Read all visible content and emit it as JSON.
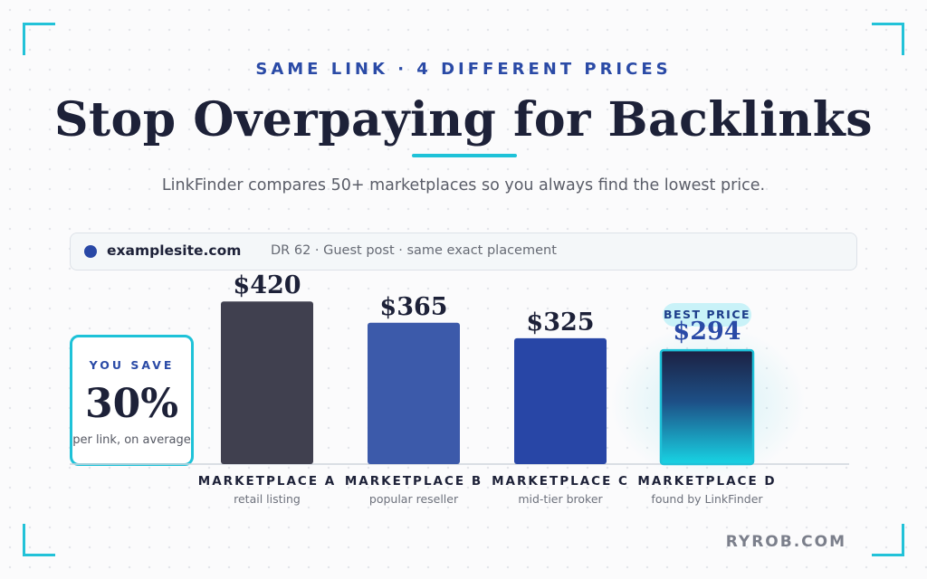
{
  "header": {
    "eyebrow": "SAME LINK · 4 DIFFERENT PRICES",
    "title": "Stop Overpaying for Backlinks",
    "subtitle": "LinkFinder compares 50+ marketplaces so you always find the lowest price."
  },
  "listing": {
    "site": "examplesite.com",
    "meta": "DR 62 · Guest post · same exact placement"
  },
  "savings": {
    "label": "YOU SAVE",
    "value": "30%",
    "note": "per link, on average"
  },
  "badge": "BEST PRICE",
  "brand": "RYROB.COM",
  "colors": {
    "accent": "#1ec2d8",
    "brand_blue": "#2a4aa6",
    "text_dark": "#1d2138"
  },
  "chart_data": {
    "type": "bar",
    "categories": [
      "MARKETPLACE A",
      "MARKETPLACE B",
      "MARKETPLACE C",
      "MARKETPLACE D"
    ],
    "sublabels": [
      "retail listing",
      "popular reseller",
      "mid-tier broker",
      "found by LinkFinder"
    ],
    "values": [
      420,
      365,
      325,
      294
    ],
    "value_labels": [
      "$420",
      "$365",
      "$325",
      "$294"
    ],
    "bar_colors": [
      "#40404f",
      "#3c5aaa",
      "#2846a6",
      "gradient-navy-cyan"
    ],
    "highlight_index": 3,
    "title": "",
    "xlabel": "",
    "ylabel": ""
  }
}
